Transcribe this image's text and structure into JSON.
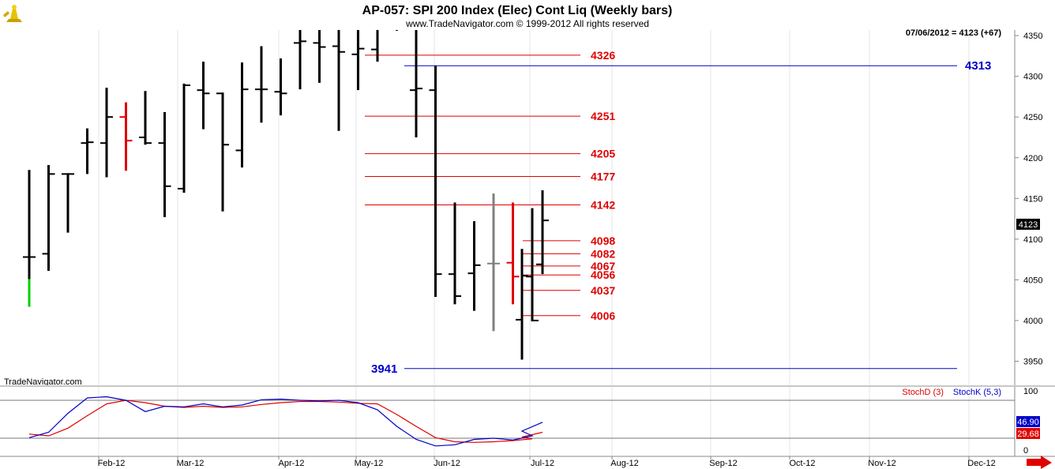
{
  "header": {
    "title": "AP-057:  SPI 200 Index (Elec) Cont Liq  (Weekly bars)",
    "subtitle": "www.TradeNavigator.com © 1999-2012 All rights reserved",
    "last_quote": "07/06/2012 = 4123 (+67)",
    "watermark": "TradeNavigator.com",
    "price_tag": "4123"
  },
  "colors": {
    "bar_default": "#000000",
    "bar_red": "#e00000",
    "bar_gray": "#808080",
    "bar_green": "#00d000",
    "level_red": "#e00000",
    "level_blue": "#0000c8",
    "stoch_d": "#e00000",
    "stoch_k": "#0000c8"
  },
  "chart_data": [
    {
      "type": "ohlc",
      "name": "price",
      "y_axis_ticks": [
        "3950",
        "4000",
        "4050",
        "4100",
        "4150",
        "4200",
        "4250",
        "4300",
        "4350"
      ],
      "ylim": [
        3918,
        4374
      ],
      "x_axis_labels": [
        "Feb-12",
        "Mar-12",
        "Apr-12",
        "May-12",
        "Jun-12",
        "Jul-12",
        "Aug-12",
        "Sep-12",
        "Oct-12",
        "Nov-12",
        "Dec-12"
      ],
      "bars": [
        {
          "week": "2012-01-06",
          "open": 4078,
          "high": 4185,
          "low": 4017,
          "close": 4078,
          "color": "black",
          "green_low_to": 4051
        },
        {
          "week": "2012-01-13",
          "open": 4082,
          "high": 4191,
          "low": 4061,
          "close": 4180
        },
        {
          "week": "2012-01-20",
          "open": 4180,
          "high": 4181,
          "low": 4108,
          "close": 4180
        },
        {
          "week": "2012-01-27",
          "open": 4218,
          "high": 4236,
          "low": 4180,
          "close": 4219
        },
        {
          "week": "2012-02-03",
          "open": 4218,
          "high": 4286,
          "low": 4176,
          "close": 4250
        },
        {
          "week": "2012-02-10",
          "open": 4250,
          "high": 4268,
          "low": 4184,
          "close": 4221,
          "color": "red"
        },
        {
          "week": "2012-02-17",
          "open": 4225,
          "high": 4282,
          "low": 4216,
          "close": 4218
        },
        {
          "week": "2012-02-24",
          "open": 4218,
          "high": 4256,
          "low": 4127,
          "close": 4165
        },
        {
          "week": "2012-03-02",
          "open": 4162,
          "high": 4291,
          "low": 4157,
          "close": 4289
        },
        {
          "week": "2012-03-09",
          "open": 4283,
          "high": 4318,
          "low": 4235,
          "close": 4279
        },
        {
          "week": "2012-03-16",
          "open": 4279,
          "high": 4280,
          "low": 4134,
          "close": 4216
        },
        {
          "week": "2012-03-23",
          "open": 4209,
          "high": 4317,
          "low": 4188,
          "close": 4284
        },
        {
          "week": "2012-03-30",
          "open": 4284,
          "high": 4337,
          "low": 4243,
          "close": 4284
        },
        {
          "week": "2012-04-05",
          "open": 4281,
          "high": 4322,
          "low": 4252,
          "close": 4279
        },
        {
          "week": "2012-04-13",
          "open": 4341,
          "high": 4374,
          "low": 4284,
          "close": 4343
        },
        {
          "week": "2012-04-20",
          "open": 4341,
          "high": 4374,
          "low": 4292,
          "close": 4336
        },
        {
          "week": "2012-04-27",
          "open": 4337,
          "high": 4374,
          "low": 4233,
          "close": 4330
        },
        {
          "week": "2012-05-04",
          "open": 4327,
          "high": 4374,
          "low": 4283,
          "close": 4334
        },
        {
          "week": "2012-05-11",
          "open": 4333,
          "high": 4374,
          "low": 4318,
          "close": 4362
        },
        {
          "week": "2012-05-18",
          "open": 4358,
          "high": 4374,
          "low": 4356,
          "close": 4362
        },
        {
          "week": "2012-05-25",
          "open": 4283,
          "high": 4374,
          "low": 4225,
          "close": 4285
        },
        {
          "week": "2012-06-01",
          "open": 4283,
          "high": 4313,
          "low": 4029,
          "close": 4057
        },
        {
          "week": "2012-06-08",
          "open": 4057,
          "high": 4145,
          "low": 4020,
          "close": 4030
        },
        {
          "week": "2012-06-15",
          "open": 4058,
          "high": 4122,
          "low": 4012,
          "close": 4068
        },
        {
          "week": "2012-06-22",
          "open": 4070,
          "high": 4156,
          "low": 3987,
          "close": 4070,
          "color": "gray"
        },
        {
          "week": "2012-06-29",
          "open": 4071,
          "high": 4145,
          "low": 4020,
          "close": 4054,
          "color": "red"
        },
        {
          "week": "2012-07-06a",
          "open": 4054,
          "high": 4138,
          "low": 3999,
          "close": 4000
        },
        {
          "week": "2012-07-06b",
          "open": 4001,
          "high": 4088,
          "low": 3952,
          "close": 4055
        },
        {
          "week": "2012-07-06",
          "open": 4069,
          "high": 4160,
          "low": 4057,
          "close": 4123
        }
      ],
      "levels": [
        {
          "label": "4326",
          "value": 4326,
          "color": "red"
        },
        {
          "label": "4313",
          "value": 4313,
          "color": "blue"
        },
        {
          "label": "4251",
          "value": 4251,
          "color": "red"
        },
        {
          "label": "4205",
          "value": 4205,
          "color": "red"
        },
        {
          "label": "4177",
          "value": 4177,
          "color": "red"
        },
        {
          "label": "4142",
          "value": 4142,
          "color": "red"
        },
        {
          "label": "4098",
          "value": 4098,
          "color": "red"
        },
        {
          "label": "4082",
          "value": 4082,
          "color": "red"
        },
        {
          "label": "4067",
          "value": 4067,
          "color": "red"
        },
        {
          "label": "4056",
          "value": 4056,
          "color": "red"
        },
        {
          "label": "4037",
          "value": 4037,
          "color": "red"
        },
        {
          "label": "4006",
          "value": 4006,
          "color": "red"
        },
        {
          "label": "3941",
          "value": 3941,
          "color": "blue"
        }
      ]
    },
    {
      "type": "line",
      "name": "stochastic",
      "legend": [
        "StochD (3)",
        "StochK (5,3)"
      ],
      "y_axis_ticks": [
        "0",
        "100"
      ],
      "ylim": [
        0,
        100
      ],
      "reference_lines": [
        84,
        20
      ],
      "value_tags": [
        "46.90",
        "29.68"
      ],
      "series": [
        {
          "name": "StochD (3)",
          "color": "red",
          "values": [
            27,
            24,
            37,
            58,
            78,
            84,
            80,
            74,
            72,
            74,
            72,
            73,
            77,
            80,
            82,
            82,
            81,
            79,
            78,
            60,
            40,
            21,
            14,
            13,
            14,
            16,
            19,
            22,
            30
          ]
        },
        {
          "name": "StochK (5,3)",
          "color": "blue",
          "values": [
            21,
            30,
            62,
            88,
            90,
            84,
            65,
            74,
            73,
            78,
            73,
            76,
            85,
            86,
            84,
            83,
            84,
            80,
            68,
            40,
            18,
            7,
            9,
            18,
            20,
            17,
            24,
            32,
            47
          ]
        }
      ]
    }
  ]
}
